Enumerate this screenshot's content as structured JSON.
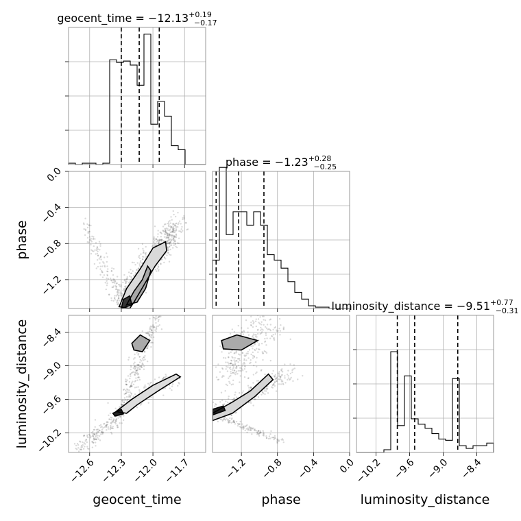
{
  "chart_data": {
    "type": "corner",
    "parameters": [
      {
        "name": "geocent_time",
        "label": "geocent_time",
        "title_name": "geocent_time",
        "title_value": "−12.13",
        "title_plus": "+0.19",
        "title_minus": "−0.17"
      },
      {
        "name": "phase",
        "label": "phase",
        "title_name": "phase",
        "title_value": "−1.23",
        "title_plus": "+0.28",
        "title_minus": "−0.25"
      },
      {
        "name": "luminosity_distance",
        "label": "luminosity_distance",
        "title_name": "luminosity_distance",
        "title_value": "−9.51",
        "title_plus": "+0.77",
        "title_minus": "−0.31"
      }
    ],
    "ranges": {
      "geocent_time": [
        -12.8,
        -11.5
      ],
      "phase": [
        -1.52,
        0.0
      ],
      "luminosity_distance": [
        -10.55,
        -8.1
      ]
    },
    "ticks": {
      "geocent_time": {
        "values": [
          -12.6,
          -12.3,
          -12.0,
          -11.7
        ],
        "labels": [
          "−12.6",
          "−12.3",
          "−12.0",
          "−11.7"
        ]
      },
      "phase": {
        "values": [
          -1.2,
          -0.8,
          -0.4,
          0.0
        ],
        "labels": [
          "−1.2",
          "−0.8",
          "−0.4",
          "0.0"
        ]
      },
      "luminosity_distance": {
        "values": [
          -10.2,
          -9.6,
          -9.0,
          -8.4
        ],
        "labels": [
          "−10.2",
          "−9.6",
          "−9.0",
          "−8.4"
        ]
      }
    },
    "quantiles": {
      "geocent_time": [
        -12.3,
        -12.13,
        -11.94
      ],
      "phase": [
        -1.48,
        -1.23,
        -0.95
      ],
      "luminosity_distance": [
        -9.82,
        -9.51,
        -8.74
      ]
    },
    "histograms": {
      "geocent_time": [
        0.01,
        0.0,
        0.01,
        0.01,
        0.0,
        0.01,
        0.78,
        0.76,
        0.77,
        0.74,
        0.59,
        0.97,
        0.3,
        0.47,
        0.36,
        0.14,
        0.11,
        0.0,
        0.0,
        0.0
      ],
      "phase": [
        0.36,
        1.05,
        0.55,
        0.72,
        0.72,
        0.62,
        0.72,
        0.62,
        0.4,
        0.36,
        0.3,
        0.2,
        0.12,
        0.07,
        0.02,
        0.01,
        0.01,
        0.0,
        0.0,
        0.0
      ],
      "luminosity_distance": [
        0.0,
        0.0,
        0.0,
        0.0,
        0.02,
        0.75,
        0.2,
        0.57,
        0.25,
        0.21,
        0.18,
        0.14,
        0.1,
        0.09,
        0.55,
        0.05,
        0.03,
        0.05,
        0.05,
        0.07
      ]
    },
    "grid": true
  }
}
